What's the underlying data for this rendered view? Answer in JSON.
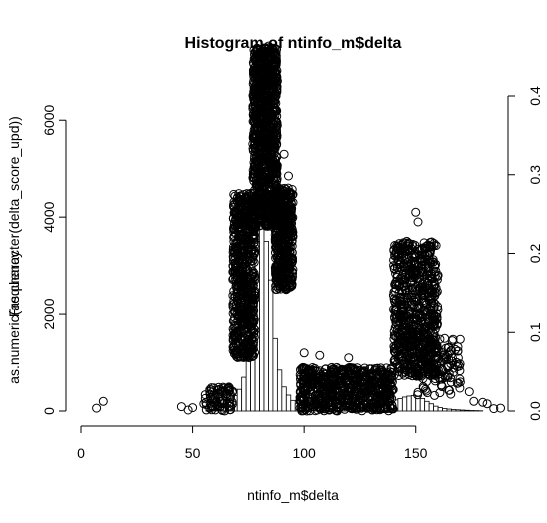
{
  "chart_data": {
    "type": "bar",
    "title": "Histogram of ntinfo_m$delta",
    "xlabel": "ntinfo_m$delta",
    "ylabel": "Frequency",
    "ylabel_overlay": "as.numeric(as.character(delta_score_upd))",
    "xlim": [
      0,
      190
    ],
    "ylim": [
      0,
      6500
    ],
    "y2lim": [
      0,
      0.4
    ],
    "x_ticks": [
      "0",
      "50",
      "100",
      "150"
    ],
    "y_ticks": [
      "0",
      "2000",
      "4000",
      "6000"
    ],
    "y2_ticks": [
      "0.0",
      "0.1",
      "0.2",
      "0.3",
      "0.4"
    ],
    "grid": false,
    "histogram": {
      "bin_width": 2,
      "bins": [
        {
          "x0": 56,
          "count": 20
        },
        {
          "x0": 58,
          "count": 35
        },
        {
          "x0": 60,
          "count": 50
        },
        {
          "x0": 62,
          "count": 80
        },
        {
          "x0": 64,
          "count": 110
        },
        {
          "x0": 66,
          "count": 180
        },
        {
          "x0": 68,
          "count": 320
        },
        {
          "x0": 70,
          "count": 450
        },
        {
          "x0": 72,
          "count": 700
        },
        {
          "x0": 74,
          "count": 1200
        },
        {
          "x0": 76,
          "count": 2300
        },
        {
          "x0": 78,
          "count": 3500
        },
        {
          "x0": 80,
          "count": 3900
        },
        {
          "x0": 82,
          "count": 3500
        },
        {
          "x0": 84,
          "count": 2700
        },
        {
          "x0": 86,
          "count": 1500
        },
        {
          "x0": 88,
          "count": 850
        },
        {
          "x0": 90,
          "count": 500
        },
        {
          "x0": 92,
          "count": 330
        },
        {
          "x0": 94,
          "count": 220
        },
        {
          "x0": 96,
          "count": 150
        },
        {
          "x0": 98,
          "count": 110
        },
        {
          "x0": 100,
          "count": 90
        },
        {
          "x0": 102,
          "count": 80
        },
        {
          "x0": 104,
          "count": 70
        },
        {
          "x0": 106,
          "count": 60
        },
        {
          "x0": 108,
          "count": 55
        },
        {
          "x0": 110,
          "count": 55
        },
        {
          "x0": 112,
          "count": 50
        },
        {
          "x0": 114,
          "count": 50
        },
        {
          "x0": 116,
          "count": 50
        },
        {
          "x0": 118,
          "count": 55
        },
        {
          "x0": 120,
          "count": 60
        },
        {
          "x0": 122,
          "count": 60
        },
        {
          "x0": 124,
          "count": 65
        },
        {
          "x0": 126,
          "count": 70
        },
        {
          "x0": 128,
          "count": 80
        },
        {
          "x0": 130,
          "count": 100
        },
        {
          "x0": 132,
          "count": 120
        },
        {
          "x0": 134,
          "count": 140
        },
        {
          "x0": 136,
          "count": 170
        },
        {
          "x0": 138,
          "count": 200
        },
        {
          "x0": 140,
          "count": 230
        },
        {
          "x0": 142,
          "count": 260
        },
        {
          "x0": 144,
          "count": 290
        },
        {
          "x0": 146,
          "count": 310
        },
        {
          "x0": 148,
          "count": 320
        },
        {
          "x0": 150,
          "count": 300
        },
        {
          "x0": 152,
          "count": 260
        },
        {
          "x0": 154,
          "count": 200
        },
        {
          "x0": 156,
          "count": 150
        },
        {
          "x0": 158,
          "count": 100
        },
        {
          "x0": 160,
          "count": 70
        },
        {
          "x0": 162,
          "count": 50
        },
        {
          "x0": 164,
          "count": 40
        },
        {
          "x0": 166,
          "count": 30
        },
        {
          "x0": 168,
          "count": 25
        },
        {
          "x0": 170,
          "count": 20
        },
        {
          "x0": 172,
          "count": 15
        },
        {
          "x0": 174,
          "count": 10
        },
        {
          "x0": 176,
          "count": 8
        },
        {
          "x0": 178,
          "count": 5
        }
      ]
    },
    "scatter_overlay": {
      "marker": "open-circle",
      "clusters": [
        {
          "x_range": [
            68,
            78
          ],
          "y_range": [
            1100,
            4500
          ],
          "n": 700
        },
        {
          "x_range": [
            77,
            88
          ],
          "y_range": [
            3800,
            7500
          ],
          "n": 1100
        },
        {
          "x_range": [
            87,
            95
          ],
          "y_range": [
            2500,
            4600
          ],
          "n": 450
        },
        {
          "x_range": [
            98,
            140
          ],
          "y_range": [
            0,
            900
          ],
          "n": 700
        },
        {
          "x_range": [
            140,
            160
          ],
          "y_range": [
            700,
            3500
          ],
          "n": 750
        },
        {
          "x_range": [
            150,
            170
          ],
          "y_range": [
            300,
            1500
          ],
          "n": 120
        },
        {
          "x_range": [
            55,
            68
          ],
          "y_range": [
            0,
            500
          ],
          "n": 80
        }
      ],
      "points": [
        {
          "x": 7,
          "y": 60
        },
        {
          "x": 10,
          "y": 200
        },
        {
          "x": 45,
          "y": 90
        },
        {
          "x": 48,
          "y": 20
        },
        {
          "x": 50,
          "y": 70
        },
        {
          "x": 62,
          "y": 450
        },
        {
          "x": 100,
          "y": 1200
        },
        {
          "x": 107,
          "y": 1150
        },
        {
          "x": 113,
          "y": 800
        },
        {
          "x": 120,
          "y": 1100
        },
        {
          "x": 142,
          "y": 3400
        },
        {
          "x": 145,
          "y": 2950
        },
        {
          "x": 147,
          "y": 3150
        },
        {
          "x": 150,
          "y": 4100
        },
        {
          "x": 151,
          "y": 3900
        },
        {
          "x": 156,
          "y": 3200
        },
        {
          "x": 160,
          "y": 2800
        },
        {
          "x": 163,
          "y": 1500
        },
        {
          "x": 165,
          "y": 1200
        },
        {
          "x": 167,
          "y": 800
        },
        {
          "x": 170,
          "y": 600
        },
        {
          "x": 174,
          "y": 400
        },
        {
          "x": 176,
          "y": 200
        },
        {
          "x": 180,
          "y": 180
        },
        {
          "x": 182,
          "y": 150
        },
        {
          "x": 185,
          "y": 50
        },
        {
          "x": 188,
          "y": 60
        },
        {
          "x": 84,
          "y": 7530
        },
        {
          "x": 79,
          "y": 7450
        },
        {
          "x": 91,
          "y": 5300
        },
        {
          "x": 93,
          "y": 4850
        },
        {
          "x": 95,
          "y": 4300
        }
      ]
    }
  }
}
